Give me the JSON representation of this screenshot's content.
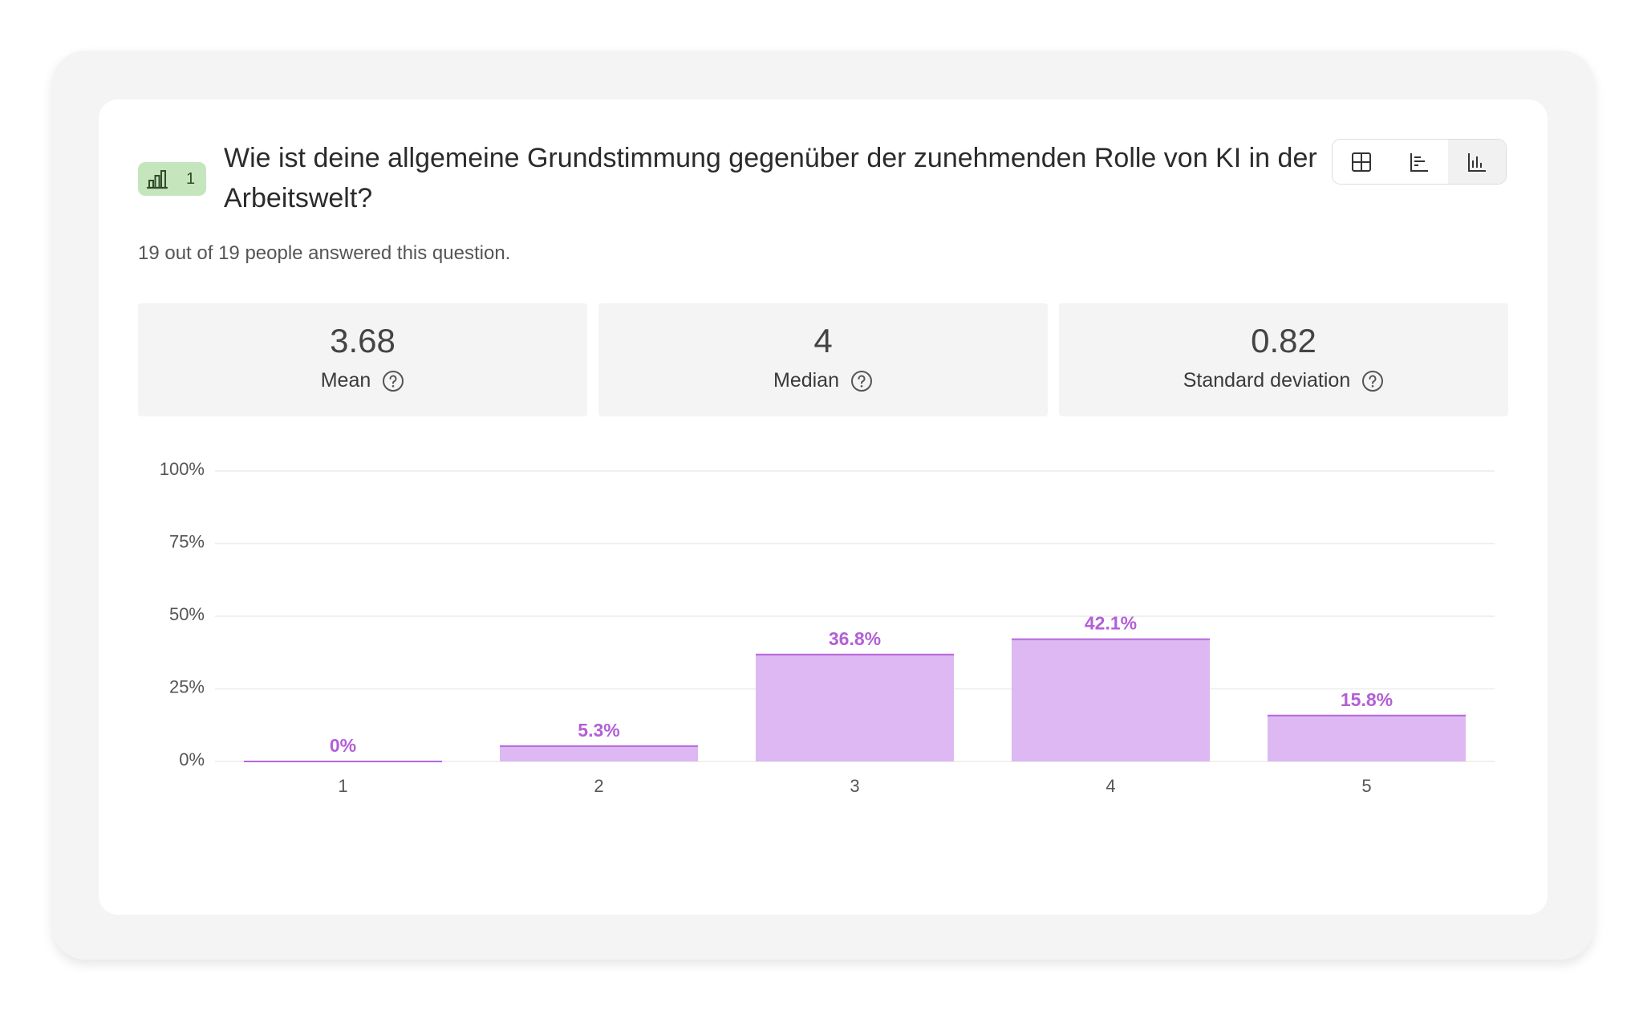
{
  "question": {
    "number": "1",
    "type_icon": "rating-bars-icon",
    "title": "Wie ist deine allgemeine Grundstimmung gegenüber der zunehmenden Rolle von KI in der Arbeitswelt?",
    "answered_text": "19 out of 19 people answered this question."
  },
  "view_switch": {
    "options": [
      "table-icon",
      "horizontal-bars-icon",
      "vertical-bars-icon"
    ],
    "active": "vertical-bars-icon"
  },
  "stats": {
    "mean": {
      "value": "3.68",
      "label": "Mean"
    },
    "median": {
      "value": "4",
      "label": "Median"
    },
    "std": {
      "value": "0.82",
      "label": "Standard deviation"
    }
  },
  "colors": {
    "bar_fill": "#ddb8f2",
    "bar_top": "#b866db",
    "data_label": "#b35fd6",
    "badge_bg": "#c5e6bd"
  },
  "chart_data": {
    "type": "bar",
    "categories": [
      "1",
      "2",
      "3",
      "4",
      "5"
    ],
    "values": [
      0,
      5.3,
      36.8,
      42.1,
      15.8
    ],
    "data_labels": [
      "0%",
      "5.3%",
      "36.8%",
      "42.1%",
      "15.8%"
    ],
    "yticks": [
      "0%",
      "25%",
      "50%",
      "75%",
      "100%"
    ],
    "ylim": [
      0,
      100
    ],
    "grid": true,
    "legend": false,
    "title": "",
    "xlabel": "",
    "ylabel": ""
  }
}
